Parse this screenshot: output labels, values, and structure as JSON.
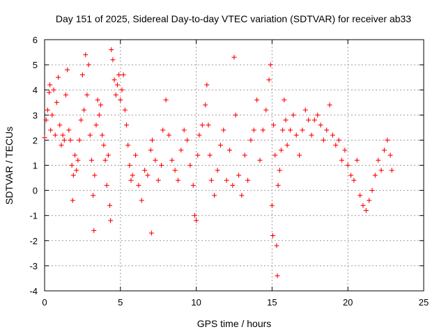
{
  "chart_data": {
    "type": "scatter",
    "title": "Day 151 of 2025, Sidereal Day-to-day VTEC variation (SDTVAR) for receiver ab33",
    "xlabel": "GPS time / hours",
    "ylabel": "SDTVAR / TECUs",
    "xlim": [
      0,
      25
    ],
    "ylim": [
      -4,
      6
    ],
    "xticks": [
      "0",
      "5",
      "10",
      "15",
      "20",
      "25"
    ],
    "yticks": [
      "-4",
      "-3",
      "-2",
      "-1",
      "0",
      "1",
      "2",
      "3",
      "4",
      "5",
      "6"
    ],
    "grid": true,
    "marker": "+",
    "series": [
      {
        "name": "SDTVAR",
        "color": "#ff0000",
        "points": [
          [
            0.0,
            2.1
          ],
          [
            0.1,
            2.8
          ],
          [
            0.2,
            3.2
          ],
          [
            0.3,
            3.9
          ],
          [
            0.35,
            4.2
          ],
          [
            0.4,
            2.4
          ],
          [
            0.5,
            3.0
          ],
          [
            0.6,
            4.0
          ],
          [
            0.7,
            2.2
          ],
          [
            0.8,
            3.5
          ],
          [
            0.9,
            4.5
          ],
          [
            1.0,
            2.6
          ],
          [
            1.1,
            1.8
          ],
          [
            1.2,
            2.2
          ],
          [
            1.3,
            2.0
          ],
          [
            1.4,
            3.8
          ],
          [
            1.5,
            4.8
          ],
          [
            1.6,
            2.4
          ],
          [
            1.7,
            2.0
          ],
          [
            1.8,
            1.0
          ],
          [
            1.85,
            -0.4
          ],
          [
            1.9,
            0.6
          ],
          [
            2.0,
            1.4
          ],
          [
            2.1,
            0.8
          ],
          [
            2.2,
            1.2
          ],
          [
            2.3,
            2.0
          ],
          [
            2.4,
            2.8
          ],
          [
            2.5,
            4.6
          ],
          [
            2.6,
            3.2
          ],
          [
            2.7,
            5.4
          ],
          [
            2.8,
            3.8
          ],
          [
            2.9,
            5.0
          ],
          [
            3.0,
            2.2
          ],
          [
            3.1,
            1.2
          ],
          [
            3.2,
            -0.2
          ],
          [
            3.25,
            -1.6
          ],
          [
            3.3,
            0.6
          ],
          [
            3.4,
            2.6
          ],
          [
            3.5,
            3.6
          ],
          [
            3.6,
            3.0
          ],
          [
            3.7,
            3.4
          ],
          [
            3.8,
            2.2
          ],
          [
            3.9,
            1.8
          ],
          [
            4.0,
            1.2
          ],
          [
            4.1,
            0.2
          ],
          [
            4.2,
            1.4
          ],
          [
            4.3,
            -0.6
          ],
          [
            4.35,
            -1.2
          ],
          [
            4.4,
            5.6
          ],
          [
            4.5,
            5.2
          ],
          [
            4.6,
            4.4
          ],
          [
            4.7,
            3.8
          ],
          [
            4.8,
            4.2
          ],
          [
            4.9,
            4.6
          ],
          [
            5.0,
            3.6
          ],
          [
            5.1,
            4.0
          ],
          [
            5.2,
            4.6
          ],
          [
            5.3,
            3.2
          ],
          [
            5.4,
            2.6
          ],
          [
            5.5,
            1.8
          ],
          [
            5.6,
            1.0
          ],
          [
            5.7,
            0.4
          ],
          [
            5.8,
            0.6
          ],
          [
            6.0,
            1.4
          ],
          [
            6.2,
            0.2
          ],
          [
            6.4,
            -0.4
          ],
          [
            6.6,
            0.8
          ],
          [
            6.8,
            0.6
          ],
          [
            7.0,
            1.6
          ],
          [
            7.05,
            -1.7
          ],
          [
            7.1,
            2.0
          ],
          [
            7.3,
            1.2
          ],
          [
            7.5,
            0.4
          ],
          [
            7.7,
            1.0
          ],
          [
            7.8,
            2.4
          ],
          [
            8.0,
            3.6
          ],
          [
            8.2,
            2.2
          ],
          [
            8.4,
            1.2
          ],
          [
            8.6,
            0.8
          ],
          [
            8.8,
            0.4
          ],
          [
            9.0,
            1.6
          ],
          [
            9.2,
            2.4
          ],
          [
            9.4,
            2.0
          ],
          [
            9.6,
            1.0
          ],
          [
            9.8,
            0.2
          ],
          [
            9.9,
            -1.0
          ],
          [
            10.0,
            -1.2
          ],
          [
            10.1,
            1.4
          ],
          [
            10.2,
            2.2
          ],
          [
            10.4,
            2.6
          ],
          [
            10.6,
            3.4
          ],
          [
            10.7,
            4.2
          ],
          [
            10.8,
            2.6
          ],
          [
            10.9,
            1.4
          ],
          [
            11.0,
            0.4
          ],
          [
            11.2,
            -0.2
          ],
          [
            11.4,
            0.8
          ],
          [
            11.6,
            1.8
          ],
          [
            11.8,
            2.4
          ],
          [
            12.0,
            0.4
          ],
          [
            12.2,
            1.6
          ],
          [
            12.4,
            0.2
          ],
          [
            12.5,
            5.3
          ],
          [
            12.6,
            3.0
          ],
          [
            12.8,
            0.6
          ],
          [
            13.0,
            -0.2
          ],
          [
            13.2,
            1.4
          ],
          [
            13.4,
            0.4
          ],
          [
            13.6,
            2.0
          ],
          [
            13.8,
            2.4
          ],
          [
            14.0,
            3.6
          ],
          [
            14.2,
            1.2
          ],
          [
            14.4,
            2.4
          ],
          [
            14.6,
            3.2
          ],
          [
            14.8,
            4.4
          ],
          [
            14.9,
            5.0
          ],
          [
            15.0,
            -0.6
          ],
          [
            15.05,
            -1.8
          ],
          [
            15.1,
            2.6
          ],
          [
            15.2,
            1.4
          ],
          [
            15.3,
            -2.2
          ],
          [
            15.35,
            -3.4
          ],
          [
            15.4,
            0.2
          ],
          [
            15.5,
            0.8
          ],
          [
            15.6,
            1.6
          ],
          [
            15.7,
            2.4
          ],
          [
            15.8,
            3.6
          ],
          [
            15.9,
            2.8
          ],
          [
            16.0,
            1.8
          ],
          [
            16.2,
            2.4
          ],
          [
            16.4,
            3.0
          ],
          [
            16.6,
            2.2
          ],
          [
            16.8,
            1.4
          ],
          [
            17.0,
            2.4
          ],
          [
            17.2,
            3.2
          ],
          [
            17.4,
            2.8
          ],
          [
            17.6,
            2.2
          ],
          [
            17.8,
            2.8
          ],
          [
            18.0,
            3.0
          ],
          [
            18.2,
            2.6
          ],
          [
            18.4,
            2.0
          ],
          [
            18.6,
            2.4
          ],
          [
            18.8,
            3.4
          ],
          [
            19.0,
            2.2
          ],
          [
            19.2,
            1.8
          ],
          [
            19.4,
            2.0
          ],
          [
            19.6,
            1.2
          ],
          [
            19.8,
            1.6
          ],
          [
            20.0,
            1.0
          ],
          [
            20.2,
            0.6
          ],
          [
            20.4,
            0.4
          ],
          [
            20.6,
            1.2
          ],
          [
            20.8,
            -0.2
          ],
          [
            21.0,
            -0.6
          ],
          [
            21.2,
            -0.8
          ],
          [
            21.4,
            -0.4
          ],
          [
            21.6,
            0.0
          ],
          [
            21.8,
            0.6
          ],
          [
            22.0,
            1.2
          ],
          [
            22.2,
            0.8
          ],
          [
            22.4,
            1.6
          ],
          [
            22.6,
            2.0
          ],
          [
            22.8,
            1.4
          ],
          [
            22.9,
            0.8
          ]
        ]
      }
    ]
  }
}
